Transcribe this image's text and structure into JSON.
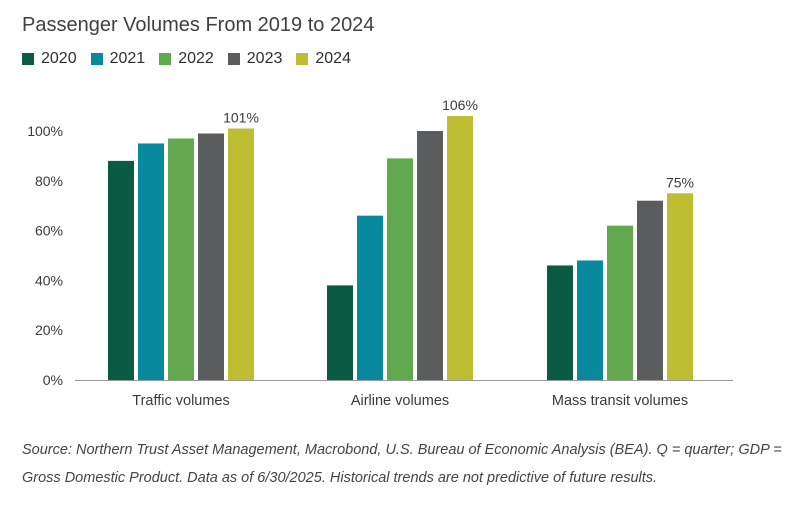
{
  "chart_data": {
    "type": "bar",
    "title": "Passenger Volumes From 2019 to 2024",
    "categories": [
      "Traffic volumes",
      "Airline volumes",
      "Mass transit volumes"
    ],
    "series": [
      {
        "name": "2020",
        "color": "#0b5a43",
        "values": [
          88,
          38,
          46
        ]
      },
      {
        "name": "2021",
        "color": "#08899e",
        "values": [
          95,
          66,
          48
        ]
      },
      {
        "name": "2022",
        "color": "#62a84e",
        "values": [
          97,
          89,
          62
        ]
      },
      {
        "name": "2023",
        "color": "#5b5c5e",
        "values": [
          99,
          100,
          72
        ]
      },
      {
        "name": "2024",
        "color": "#bdbe31",
        "values": [
          101,
          106,
          75
        ]
      }
    ],
    "data_labels": [
      {
        "series": "2024",
        "category": "Traffic volumes",
        "text": "101%"
      },
      {
        "series": "2024",
        "category": "Airline volumes",
        "text": "106%"
      },
      {
        "series": "2024",
        "category": "Mass transit volumes",
        "text": "75%"
      }
    ],
    "yticks": [
      "0%",
      "20%",
      "40%",
      "60%",
      "80%",
      "100%"
    ],
    "ylim": [
      0,
      110
    ],
    "legend": "top-left",
    "grid": false
  },
  "note": "Source: Northern Trust Asset Management, Macrobond, U.S. Bureau of Economic Analysis (BEA). Q = quarter; GDP = Gross Domestic Product. Data as of 6/30/2025. Historical trends are not predictive of future results."
}
